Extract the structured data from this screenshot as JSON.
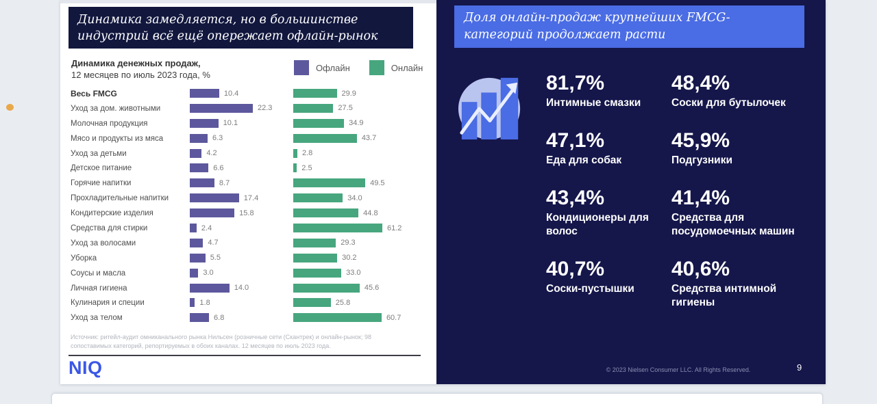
{
  "left_panel": {
    "title": "Динамика замедляется, но в большинстве индустрий всё ещё опережает офлайн-рынок",
    "chart_header_line1": "Динамика денежных продаж,",
    "chart_header_line2": "12 месяцев по июль 2023 года, %",
    "source_note": "Источник: ритейл-аудит омниканального рынка Нильсен (розничные сети (Скантрек) и онлайн-рынок; 98 сопоставимых категорий, репортируемых в обоих каналах. 12 месяцев по июль 2023 года.",
    "logo_text": "NIQ"
  },
  "chart_data": {
    "type": "bar",
    "orientation": "horizontal",
    "title": "Динамика денежных продаж, 12 месяцев по июль 2023 года, %",
    "legend_position": "top-right",
    "categories": [
      "Весь FMCG",
      "Уход за дом. животными",
      "Молочная продукция",
      "Мясо и продукты из мяса",
      "Уход за детьми",
      "Детское питание",
      "Горячие напитки",
      "Прохладительные напитки",
      "Кондитерские изделия",
      "Средства для стирки",
      "Уход за волосами",
      "Уборка",
      "Соусы и масла",
      "Личная гигиена",
      "Кулинария и специи",
      "Уход за телом"
    ],
    "series": [
      {
        "name": "Офлайн",
        "color": "#5d589d",
        "values": [
          10.4,
          22.3,
          10.1,
          6.3,
          4.2,
          6.6,
          8.7,
          17.4,
          15.8,
          2.4,
          4.7,
          5.5,
          3.0,
          14.0,
          1.8,
          6.8
        ]
      },
      {
        "name": "Онлайн",
        "color": "#47a67e",
        "values": [
          29.9,
          27.5,
          34.9,
          43.7,
          2.8,
          2.5,
          49.5,
          34.0,
          44.8,
          61.2,
          29.3,
          30.2,
          33.0,
          45.6,
          25.8,
          60.7
        ]
      }
    ]
  },
  "right_panel": {
    "title": "Доля онлайн-продаж крупнейших FMCG-категорий продолжает расти",
    "panel_color": "#15164a",
    "title_box_color": "#4a6ce4",
    "stats": [
      {
        "value": "81,7%",
        "label": "Интимные смазки"
      },
      {
        "value": "48,4%",
        "label": "Соски для бутылочек"
      },
      {
        "value": "47,1%",
        "label": "Еда для собак"
      },
      {
        "value": "45,9%",
        "label": "Подгузники"
      },
      {
        "value": "43,4%",
        "label": "Кондиционеры для волос"
      },
      {
        "value": "41,4%",
        "label": "Средства для посудомоечных машин"
      },
      {
        "value": "40,7%",
        "label": "Соски-пустышки"
      },
      {
        "value": "40,6%",
        "label": "Средства интимной гигиены"
      }
    ],
    "footer_copyright": "© 2023 Nielsen Consumer LLC. All Rights Reserved.",
    "page_number": "9"
  }
}
